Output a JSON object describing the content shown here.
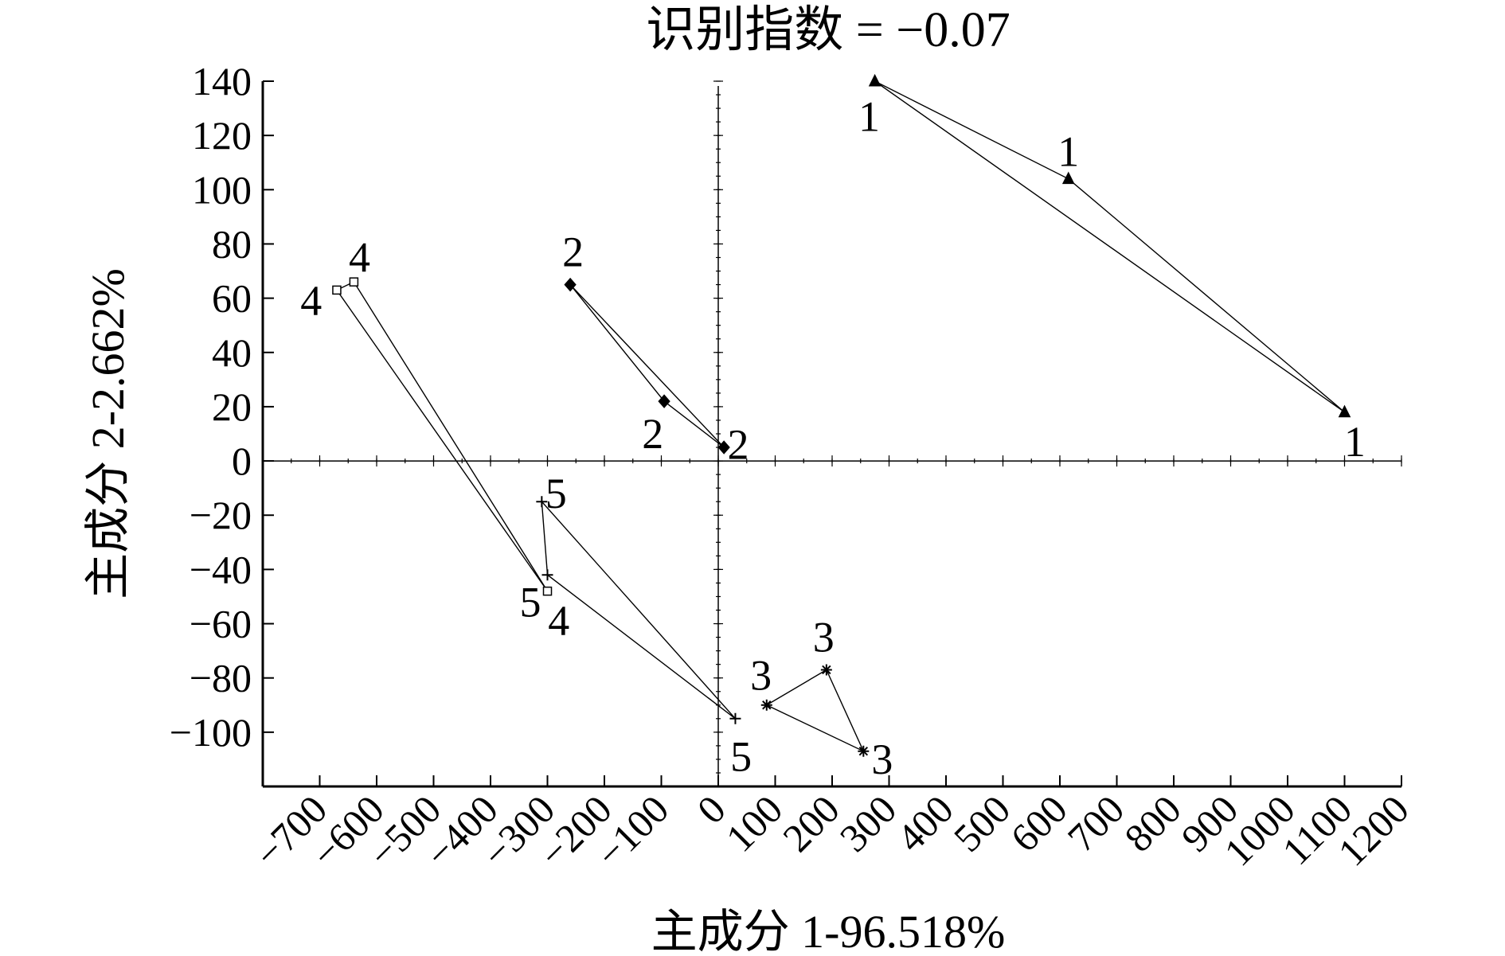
{
  "chart_data": {
    "type": "scatter",
    "title": "识别指数 = −0.07",
    "xlabel": "主成分 1-96.518%",
    "ylabel": "主成分 2-2.662%",
    "xlim": [
      -800,
      1200
    ],
    "ylim": [
      -120,
      140
    ],
    "xticks": [
      {
        "value": -700,
        "label": "−700"
      },
      {
        "value": -600,
        "label": "−600"
      },
      {
        "value": -500,
        "label": "−500"
      },
      {
        "value": -400,
        "label": "−400"
      },
      {
        "value": -300,
        "label": "−300"
      },
      {
        "value": -200,
        "label": "−200"
      },
      {
        "value": -100,
        "label": "−100"
      },
      {
        "value": 0,
        "label": "0"
      },
      {
        "value": 100,
        "label": "100"
      },
      {
        "value": 200,
        "label": "200"
      },
      {
        "value": 300,
        "label": "300"
      },
      {
        "value": 400,
        "label": "400"
      },
      {
        "value": 500,
        "label": "500"
      },
      {
        "value": 600,
        "label": "600"
      },
      {
        "value": 700,
        "label": "700"
      },
      {
        "value": 800,
        "label": "800"
      },
      {
        "value": 900,
        "label": "900"
      },
      {
        "value": 1000,
        "label": "1000"
      },
      {
        "value": 1100,
        "label": "1100"
      },
      {
        "value": 1200,
        "label": "1200"
      }
    ],
    "yticks": [
      {
        "value": 140,
        "label": "140"
      },
      {
        "value": 120,
        "label": "120"
      },
      {
        "value": 100,
        "label": "100"
      },
      {
        "value": 80,
        "label": "80"
      },
      {
        "value": 60,
        "label": "60"
      },
      {
        "value": 40,
        "label": "40"
      },
      {
        "value": 20,
        "label": "20"
      },
      {
        "value": 0,
        "label": "0"
      },
      {
        "value": -20,
        "label": "−20"
      },
      {
        "value": -40,
        "label": "−40"
      },
      {
        "value": -60,
        "label": "−60"
      },
      {
        "value": -80,
        "label": "−80"
      },
      {
        "value": -100,
        "label": "−100"
      }
    ],
    "series": [
      {
        "label": "1",
        "marker": "triangle",
        "x": [
          275,
          615,
          1100
        ],
        "y": [
          140,
          104,
          18
        ]
      },
      {
        "label": "2",
        "marker": "diamond",
        "x": [
          -260,
          -95,
          10
        ],
        "y": [
          65,
          22,
          5
        ]
      },
      {
        "label": "3",
        "marker": "star",
        "x": [
          85,
          190,
          255
        ],
        "y": [
          -90,
          -77,
          -107
        ]
      },
      {
        "label": "4",
        "marker": "square",
        "x": [
          -670,
          -640,
          -300
        ],
        "y": [
          63,
          66,
          -48
        ]
      },
      {
        "label": "5",
        "marker": "plus",
        "x": [
          -310,
          -300,
          30
        ],
        "y": [
          -15,
          -42,
          -95
        ]
      }
    ],
    "point_labels": [
      {
        "series": 0,
        "text": "1",
        "x": 265,
        "y": 127
      },
      {
        "series": 0,
        "text": "1",
        "x": 615,
        "y": 114
      },
      {
        "series": 0,
        "text": "1",
        "x": 1118,
        "y": 7
      },
      {
        "series": 1,
        "text": "2",
        "x": -255,
        "y": 77
      },
      {
        "series": 1,
        "text": "2",
        "x": -115,
        "y": 10
      },
      {
        "series": 1,
        "text": "2",
        "x": 35,
        "y": 6
      },
      {
        "series": 2,
        "text": "3",
        "x": 75,
        "y": -79
      },
      {
        "series": 2,
        "text": "3",
        "x": 185,
        "y": -65
      },
      {
        "series": 2,
        "text": "3",
        "x": 288,
        "y": -110
      },
      {
        "series": 3,
        "text": "4",
        "x": -715,
        "y": 59
      },
      {
        "series": 3,
        "text": "4",
        "x": -630,
        "y": 75
      },
      {
        "series": 3,
        "text": "4",
        "x": -280,
        "y": -59
      },
      {
        "series": 4,
        "text": "5",
        "x": -285,
        "y": -12
      },
      {
        "series": 4,
        "text": "5",
        "x": -330,
        "y": -52
      },
      {
        "series": 4,
        "text": "5",
        "x": 40,
        "y": -109
      }
    ],
    "grid": false,
    "legend": "none"
  }
}
